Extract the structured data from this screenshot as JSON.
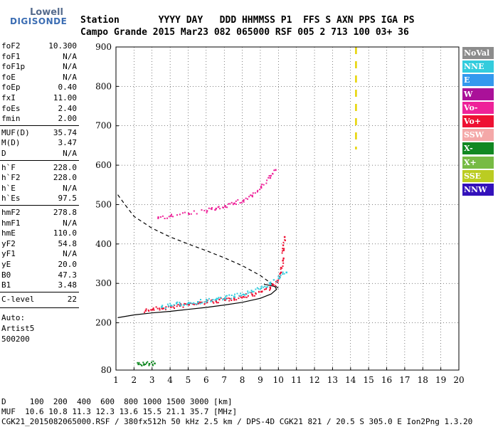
{
  "logo": {
    "line1": "Lowell",
    "line2": "DIGISONDE"
  },
  "header": {
    "line1": "Station       YYYY DAY   DDD HHMMSS P1  FFS S AXN PPS IGA PS",
    "line2": "Campo Grande 2015 Mar23 082 065000 RSF 005 2 713 100 03+ 36"
  },
  "params": [
    {
      "name": "foF2",
      "value": "10.300"
    },
    {
      "name": "foF1",
      "value": "N/A"
    },
    {
      "name": "foF1p",
      "value": "N/A"
    },
    {
      "name": "foE",
      "value": "N/A"
    },
    {
      "name": "foEp",
      "value": "0.40"
    },
    {
      "name": "fxI",
      "value": "11.00"
    },
    {
      "name": "foEs",
      "value": "2.40"
    },
    {
      "name": "fmin",
      "value": "2.00"
    },
    {
      "name": "MUF(D)",
      "value": "35.74"
    },
    {
      "name": "M(D)",
      "value": "3.47"
    },
    {
      "name": "D",
      "value": "N/A"
    },
    {
      "name": "h`F",
      "value": "228.0"
    },
    {
      "name": "h`F2",
      "value": "228.0"
    },
    {
      "name": "h`E",
      "value": "N/A"
    },
    {
      "name": "h`Es",
      "value": "97.5"
    },
    {
      "name": "hmF2",
      "value": "278.8"
    },
    {
      "name": "hmF1",
      "value": "N/A"
    },
    {
      "name": "hmE",
      "value": "110.0"
    },
    {
      "name": "yF2",
      "value": "54.8"
    },
    {
      "name": "yF1",
      "value": "N/A"
    },
    {
      "name": "yE",
      "value": "20.0"
    },
    {
      "name": "B0",
      "value": "47.3"
    },
    {
      "name": "B1",
      "value": "3.48"
    },
    {
      "name": "C-level",
      "value": "22"
    }
  ],
  "autoscaling": {
    "line1": "Auto:",
    "line2": "Artist5",
    "line3": "500200"
  },
  "legend": [
    {
      "label": "NoVal",
      "color": "#8c8c8c"
    },
    {
      "label": "NNE",
      "color": "#33ccdd"
    },
    {
      "label": "E",
      "color": "#3399ee"
    },
    {
      "label": "W",
      "color": "#aa1199"
    },
    {
      "label": "Vo-",
      "color": "#ee2299"
    },
    {
      "label": "Vo+",
      "color": "#ee1133"
    },
    {
      "label": "SSW",
      "color": "#f4a8a8"
    },
    {
      "label": "X-",
      "color": "#118822"
    },
    {
      "label": "X+",
      "color": "#77bb44"
    },
    {
      "label": "SSE",
      "color": "#bbcc22"
    },
    {
      "label": "NNW",
      "color": "#3311bb"
    }
  ],
  "footer": {
    "line1": "D     100  200  400  600  800 1000 1500 3000 [km]",
    "line2": "MUF  10.6 10.8 11.3 12.3 13.6 15.5 21.1 35.7 [MHz]",
    "line3": "CGK21_2015082065000.RSF / 380fx512h 50 kHz 2.5 km / DPS-4D CGK21 821 / 20.5 S 305.0 E Ion2Png 1.3.20"
  },
  "chart_data": {
    "type": "scatter",
    "xlim": [
      1,
      20
    ],
    "ylim": [
      80,
      900
    ],
    "x_ticks": [
      "1",
      "2",
      "3",
      "4",
      "5",
      "6",
      "7",
      "8",
      "9",
      "10",
      "11",
      "12",
      "13",
      "14",
      "15",
      "16",
      "17",
      "18",
      "19",
      "20"
    ],
    "y_ticks": [
      "80",
      "200",
      "300",
      "400",
      "500",
      "600",
      "700",
      "800",
      "900"
    ],
    "grid": true,
    "traces": [
      {
        "name": "O-trace F2",
        "color": "#ee1133",
        "points": [
          [
            2.6,
            233
          ],
          [
            3.0,
            236
          ],
          [
            3.5,
            239
          ],
          [
            4.0,
            242
          ],
          [
            4.5,
            245
          ],
          [
            5.0,
            248
          ],
          [
            5.5,
            251
          ],
          [
            6.0,
            254
          ],
          [
            6.5,
            257
          ],
          [
            7.0,
            260
          ],
          [
            7.5,
            264
          ],
          [
            8.0,
            268
          ],
          [
            8.5,
            274
          ],
          [
            9.0,
            281
          ],
          [
            9.5,
            292
          ],
          [
            9.9,
            305
          ],
          [
            10.1,
            330
          ],
          [
            10.2,
            360
          ],
          [
            10.25,
            390
          ],
          [
            10.3,
            420
          ]
        ]
      },
      {
        "name": "X-trace F2",
        "color": "#33ccdd",
        "points": [
          [
            3.5,
            242
          ],
          [
            4.0,
            246
          ],
          [
            4.5,
            249
          ],
          [
            5.0,
            252
          ],
          [
            5.5,
            255
          ],
          [
            6.0,
            258
          ],
          [
            6.5,
            261
          ],
          [
            7.0,
            265
          ],
          [
            7.5,
            269
          ],
          [
            8.0,
            274
          ],
          [
            8.5,
            281
          ],
          [
            9.0,
            290
          ],
          [
            9.5,
            301
          ],
          [
            10.0,
            315
          ],
          [
            10.4,
            330
          ]
        ]
      },
      {
        "name": "2nd hop",
        "color": "#ee2299",
        "points": [
          [
            3.3,
            470
          ],
          [
            4.0,
            473
          ],
          [
            5.0,
            478
          ],
          [
            6.0,
            486
          ],
          [
            6.5,
            492
          ],
          [
            7.0,
            499
          ],
          [
            7.5,
            505
          ],
          [
            8.0,
            512
          ],
          [
            8.5,
            525
          ],
          [
            9.0,
            545
          ],
          [
            9.5,
            570
          ],
          [
            9.8,
            590
          ]
        ]
      },
      {
        "name": "Es",
        "color": "#118822",
        "points": [
          [
            2.2,
            97
          ],
          [
            2.5,
            97
          ],
          [
            2.8,
            98
          ],
          [
            3.1,
            99
          ]
        ]
      }
    ],
    "model_profile": [
      [
        1.1,
        213
      ],
      [
        2.0,
        220
      ],
      [
        3.0,
        225
      ],
      [
        4.0,
        229
      ],
      [
        5.0,
        234
      ],
      [
        6.0,
        239
      ],
      [
        7.0,
        245
      ],
      [
        8.0,
        252
      ],
      [
        9.0,
        262
      ],
      [
        9.6,
        273
      ],
      [
        9.9,
        285
      ],
      [
        9.8,
        292
      ],
      [
        9.2,
        298
      ]
    ],
    "model_profile_dashed": [
      [
        1.1,
        525
      ],
      [
        1.5,
        500
      ],
      [
        2.0,
        470
      ],
      [
        3.0,
        440
      ],
      [
        4.0,
        418
      ],
      [
        5.0,
        400
      ],
      [
        6.0,
        383
      ],
      [
        7.0,
        365
      ],
      [
        8.0,
        345
      ],
      [
        9.0,
        320
      ],
      [
        9.6,
        300
      ],
      [
        10.0,
        288
      ]
    ],
    "muf_marker": {
      "x": 14.3,
      "y_from": 640,
      "y_to": 900,
      "color": "#e6d300"
    }
  }
}
